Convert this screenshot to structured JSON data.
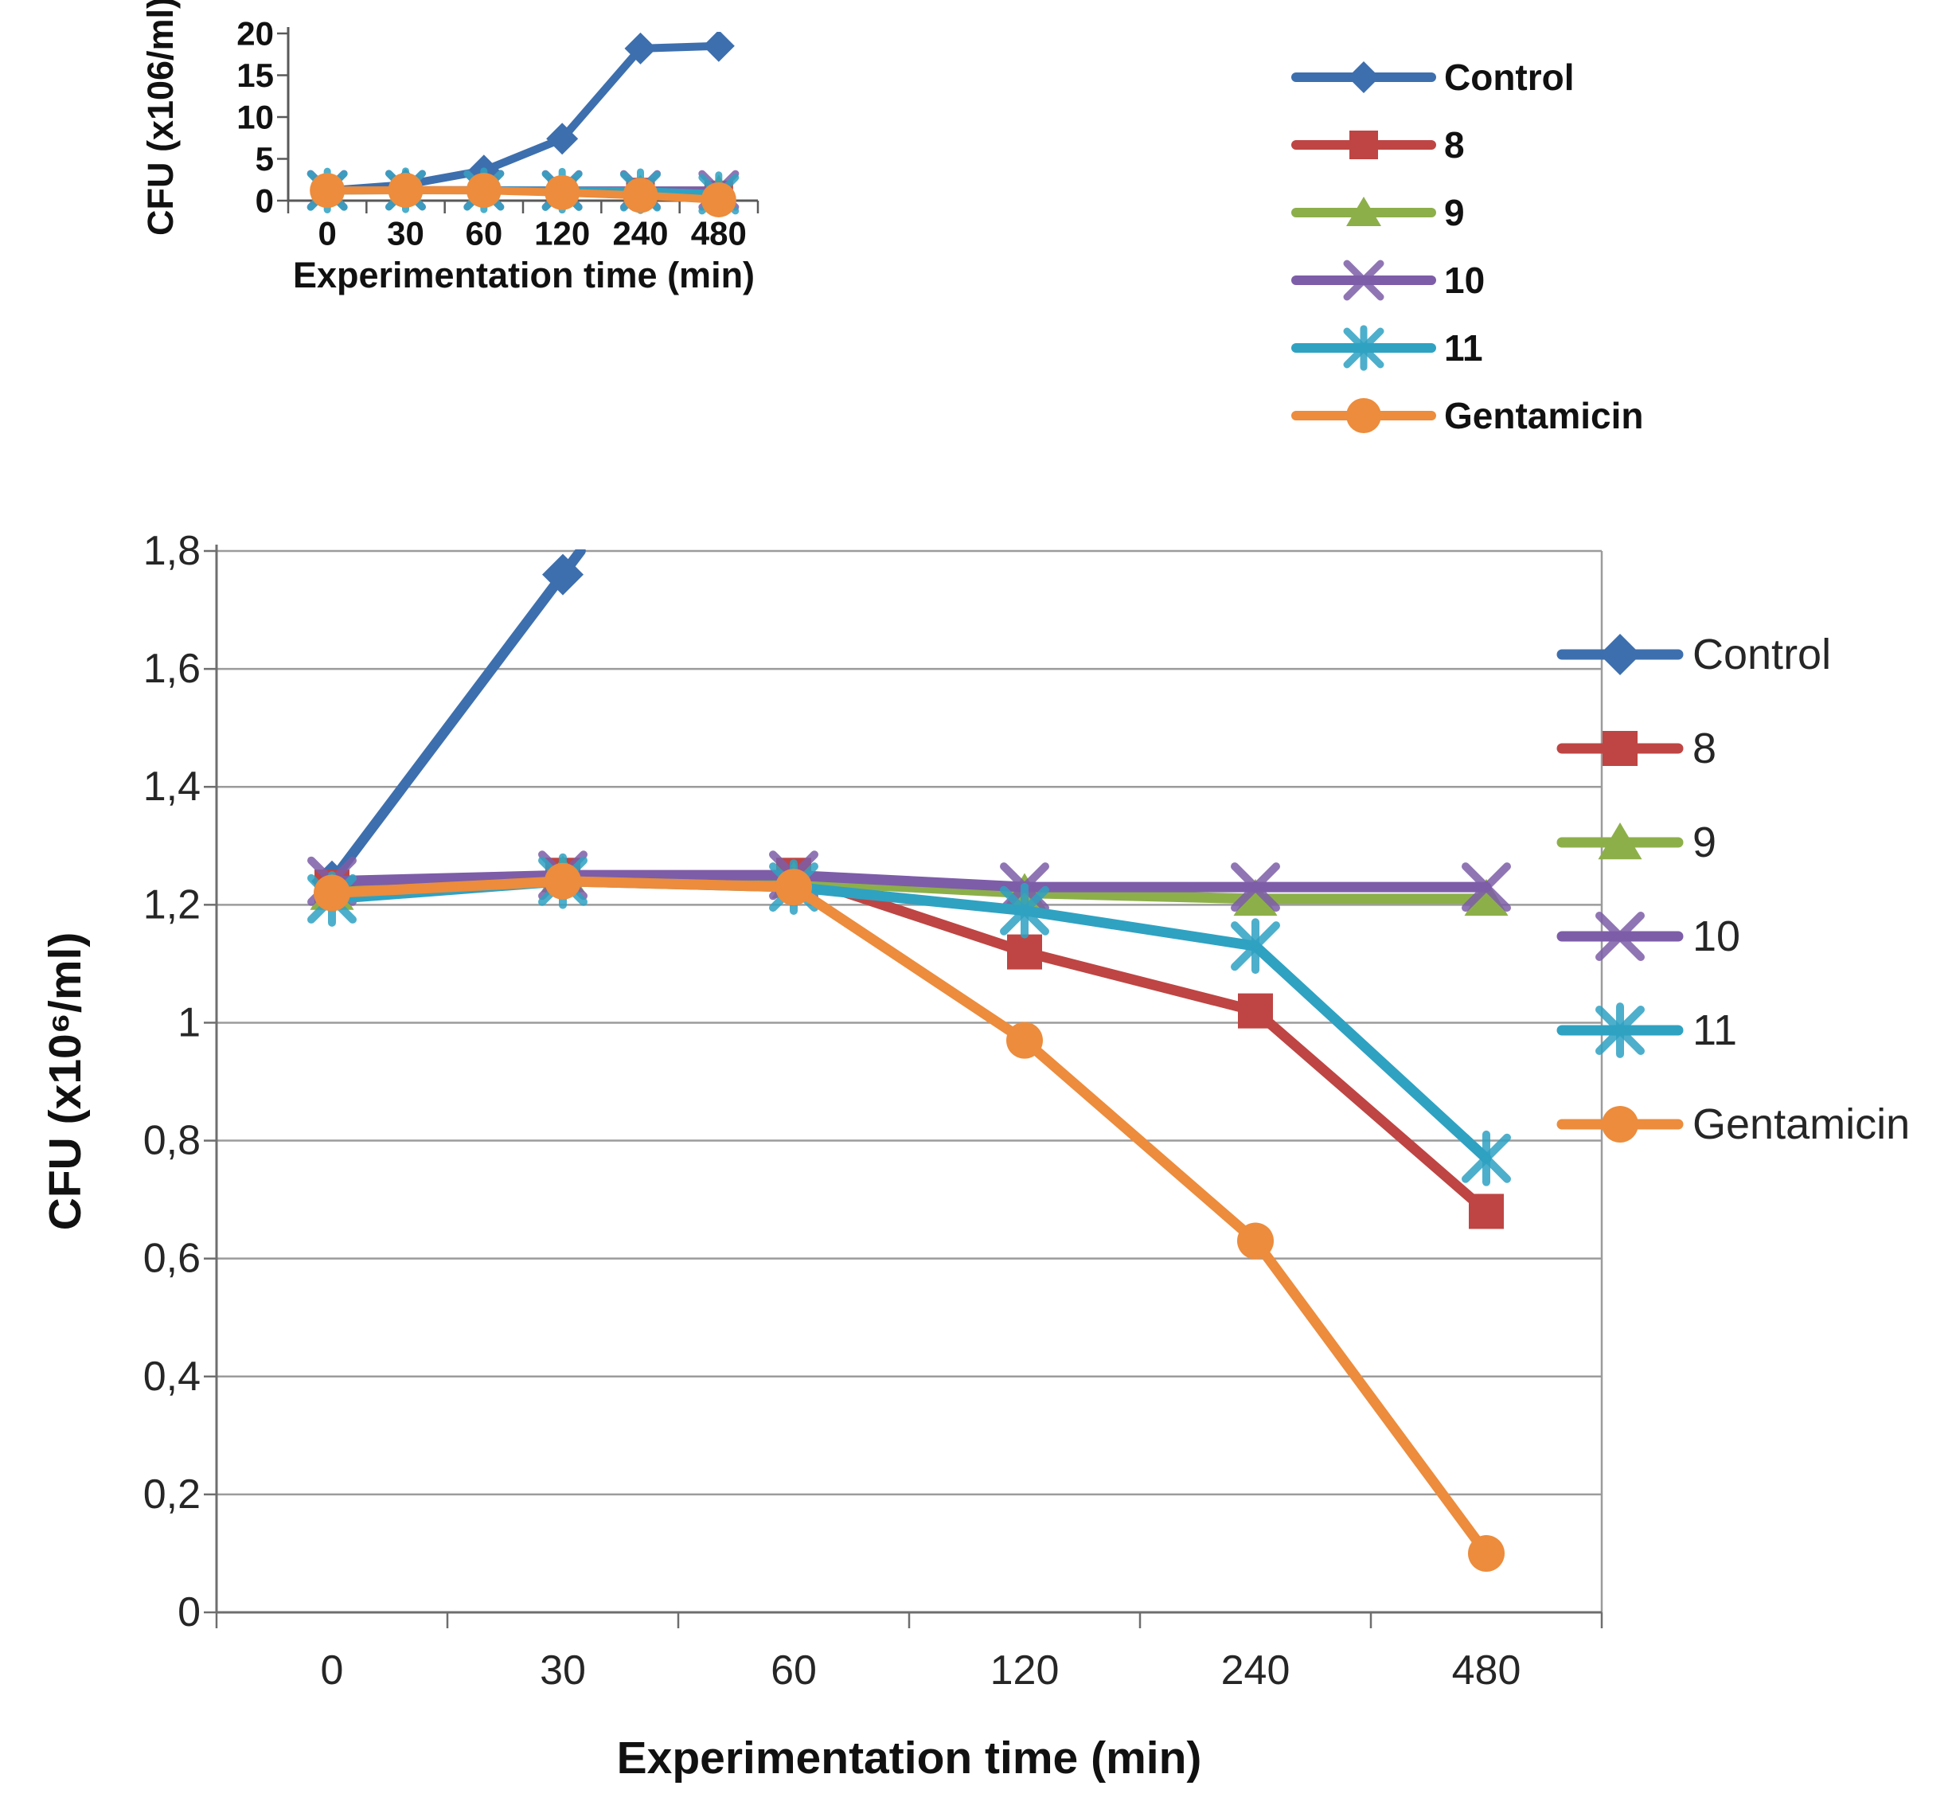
{
  "figure": {
    "background": "#ffffff",
    "description": "Two stacked line charts of CFU versus experimentation time for Control, compounds 8-11 and Gentamicin"
  },
  "chart_data": [
    {
      "id": "top",
      "type": "line",
      "title": "",
      "xlabel": "Experimentation time (min)",
      "ylabel": "CFU (x106/ml)",
      "categories": [
        "0",
        "30",
        "60",
        "120",
        "240",
        "480"
      ],
      "y_ticks": [
        "20",
        "15",
        "10",
        "5",
        "0"
      ],
      "ylim": [
        0,
        20
      ],
      "grid": false,
      "legend_position": "right",
      "series": [
        {
          "name": "Control",
          "color": "#3D6FAE",
          "marker": "diamond",
          "values": [
            1.2,
            1.9,
            3.6,
            7.4,
            18.2,
            18.5
          ]
        },
        {
          "name": "8",
          "color": "#BE4543",
          "marker": "square",
          "values": [
            1.23,
            1.25,
            1.25,
            1.12,
            1.02,
            0.68
          ]
        },
        {
          "name": "9",
          "color": "#8DAF4A",
          "marker": "triangle",
          "values": [
            1.22,
            1.25,
            1.24,
            1.22,
            1.21,
            1.21
          ]
        },
        {
          "name": "10",
          "color": "#7D5DA8",
          "marker": "x",
          "values": [
            1.24,
            1.25,
            1.25,
            1.23,
            1.23,
            1.23
          ]
        },
        {
          "name": "11",
          "color": "#2FA2C2",
          "marker": "asterisk",
          "values": [
            1.21,
            1.24,
            1.23,
            1.19,
            1.13,
            0.77
          ]
        },
        {
          "name": "Gentamicin",
          "color": "#EC8C3C",
          "marker": "circle",
          "values": [
            1.22,
            1.24,
            1.23,
            0.97,
            0.63,
            0.1
          ]
        }
      ]
    },
    {
      "id": "bottom",
      "type": "line",
      "title": "",
      "xlabel": "Experimentation time (min)",
      "ylabel": "CFU (x10⁶/ml)",
      "categories": [
        "0",
        "30",
        "60",
        "120",
        "240",
        "480"
      ],
      "y_ticks": [
        "1,8",
        "1,6",
        "1,4",
        "1,2",
        "1",
        "0,8",
        "0,6",
        "0,4",
        "0,2",
        "0"
      ],
      "ylim": [
        0,
        1.8
      ],
      "grid": true,
      "legend_position": "right",
      "series": [
        {
          "name": "Control",
          "color": "#3D6FAE",
          "marker": "diamond",
          "values": [
            1.24,
            1.76,
            null,
            null,
            null,
            null
          ],
          "clipped_continuation": true
        },
        {
          "name": "8",
          "color": "#BE4543",
          "marker": "square",
          "values": [
            1.23,
            1.25,
            1.25,
            1.12,
            1.02,
            0.68
          ]
        },
        {
          "name": "9",
          "color": "#8DAF4A",
          "marker": "triangle",
          "values": [
            1.22,
            1.25,
            1.24,
            1.22,
            1.21,
            1.21
          ]
        },
        {
          "name": "10",
          "color": "#7D5DA8",
          "marker": "x",
          "values": [
            1.24,
            1.25,
            1.25,
            1.23,
            1.23,
            1.23
          ]
        },
        {
          "name": "11",
          "color": "#2FA2C2",
          "marker": "asterisk",
          "values": [
            1.21,
            1.24,
            1.23,
            1.19,
            1.13,
            0.77
          ]
        },
        {
          "name": "Gentamicin",
          "color": "#EC8C3C",
          "marker": "circle",
          "values": [
            1.22,
            1.24,
            1.23,
            0.97,
            0.63,
            0.1
          ]
        }
      ]
    }
  ]
}
